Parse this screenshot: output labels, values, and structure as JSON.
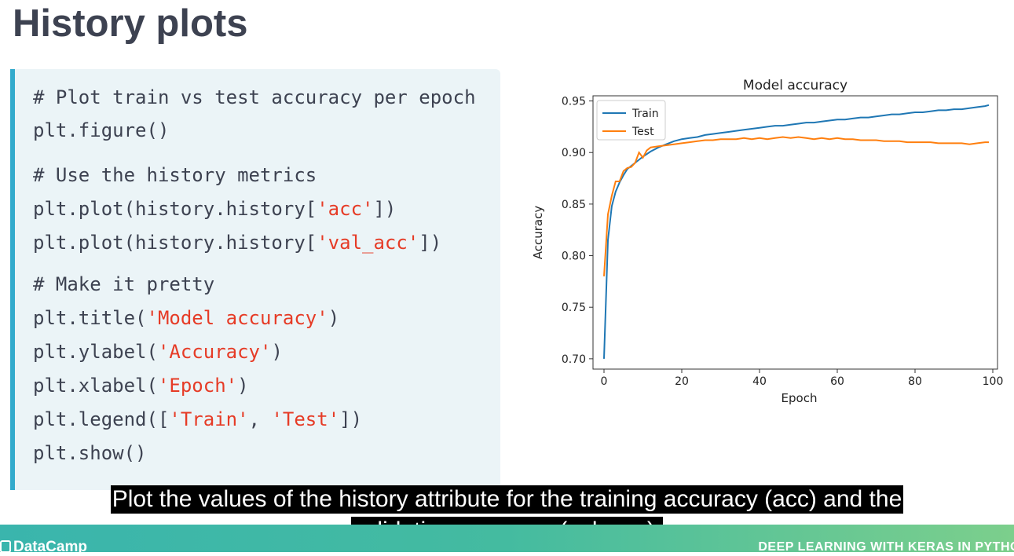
{
  "slide": {
    "title": "History plots"
  },
  "code": {
    "lines": [
      {
        "parts": [
          {
            "text": "# Plot train vs test accuracy per epoch",
            "str": false
          }
        ]
      },
      {
        "parts": [
          {
            "text": "plt.figure()",
            "str": false
          }
        ]
      },
      {
        "parts": [
          {
            "text": "# Use the history metrics",
            "str": false
          }
        ]
      },
      {
        "parts": [
          {
            "text": "plt.plot(history.history[",
            "str": false
          },
          {
            "text": "'acc'",
            "str": true
          },
          {
            "text": "])",
            "str": false
          }
        ]
      },
      {
        "parts": [
          {
            "text": "plt.plot(history.history[",
            "str": false
          },
          {
            "text": "'val_acc'",
            "str": true
          },
          {
            "text": "])",
            "str": false
          }
        ]
      },
      {
        "parts": [
          {
            "text": "# Make it pretty",
            "str": false
          }
        ]
      },
      {
        "parts": [
          {
            "text": "plt.title(",
            "str": false
          },
          {
            "text": "'Model accuracy'",
            "str": true
          },
          {
            "text": ")",
            "str": false
          }
        ]
      },
      {
        "parts": [
          {
            "text": "plt.ylabel(",
            "str": false
          },
          {
            "text": "'Accuracy'",
            "str": true
          },
          {
            "text": ")",
            "str": false
          }
        ]
      },
      {
        "parts": [
          {
            "text": "plt.xlabel(",
            "str": false
          },
          {
            "text": "'Epoch'",
            "str": true
          },
          {
            "text": ")",
            "str": false
          }
        ]
      },
      {
        "parts": [
          {
            "text": "plt.legend([",
            "str": false
          },
          {
            "text": "'Train'",
            "str": true
          },
          {
            "text": ", ",
            "str": false
          },
          {
            "text": "'Test'",
            "str": true
          },
          {
            "text": "])",
            "str": false
          }
        ]
      },
      {
        "parts": [
          {
            "text": "plt.show()",
            "str": false
          }
        ]
      }
    ]
  },
  "chart_data": {
    "type": "line",
    "title": "Model accuracy",
    "xlabel": "Epoch",
    "ylabel": "Accuracy",
    "xlim": [
      0,
      100
    ],
    "ylim": [
      0.69,
      0.955
    ],
    "xticks": [
      0,
      20,
      40,
      60,
      80,
      100
    ],
    "yticks": [
      0.7,
      0.75,
      0.8,
      0.85,
      0.9,
      0.95
    ],
    "ytick_labels": [
      "0.70",
      "0.75",
      "0.80",
      "0.85",
      "0.90",
      "0.95"
    ],
    "legend": "top-left",
    "series": [
      {
        "name": "Train",
        "color": "#1f77b4",
        "x": [
          0,
          1,
          2,
          3,
          4,
          5,
          6,
          8,
          10,
          12,
          14,
          16,
          18,
          20,
          22,
          24,
          26,
          28,
          30,
          32,
          34,
          36,
          38,
          40,
          42,
          44,
          46,
          48,
          50,
          52,
          54,
          56,
          58,
          60,
          62,
          64,
          66,
          68,
          70,
          72,
          74,
          76,
          78,
          80,
          82,
          84,
          86,
          88,
          90,
          92,
          94,
          96,
          98,
          99
        ],
        "values": [
          0.7,
          0.815,
          0.848,
          0.862,
          0.871,
          0.878,
          0.884,
          0.89,
          0.896,
          0.901,
          0.905,
          0.908,
          0.911,
          0.913,
          0.914,
          0.915,
          0.917,
          0.918,
          0.919,
          0.92,
          0.921,
          0.922,
          0.923,
          0.924,
          0.925,
          0.926,
          0.926,
          0.927,
          0.928,
          0.929,
          0.929,
          0.93,
          0.931,
          0.932,
          0.932,
          0.933,
          0.934,
          0.934,
          0.935,
          0.936,
          0.937,
          0.937,
          0.938,
          0.939,
          0.939,
          0.94,
          0.941,
          0.941,
          0.942,
          0.942,
          0.943,
          0.944,
          0.945,
          0.946
        ]
      },
      {
        "name": "Test",
        "color": "#ff7f0e",
        "x": [
          0,
          1,
          2,
          3,
          4,
          5,
          6,
          7,
          8,
          9,
          10,
          11,
          12,
          14,
          16,
          18,
          20,
          22,
          24,
          26,
          28,
          30,
          32,
          34,
          36,
          38,
          40,
          42,
          44,
          46,
          48,
          50,
          52,
          54,
          56,
          58,
          60,
          62,
          64,
          66,
          68,
          70,
          72,
          74,
          76,
          78,
          80,
          82,
          84,
          86,
          88,
          90,
          92,
          94,
          96,
          98,
          99
        ],
        "values": [
          0.78,
          0.84,
          0.858,
          0.872,
          0.872,
          0.882,
          0.885,
          0.886,
          0.89,
          0.9,
          0.895,
          0.902,
          0.905,
          0.906,
          0.907,
          0.908,
          0.909,
          0.91,
          0.911,
          0.912,
          0.912,
          0.913,
          0.913,
          0.913,
          0.914,
          0.913,
          0.914,
          0.913,
          0.914,
          0.915,
          0.914,
          0.915,
          0.914,
          0.913,
          0.914,
          0.913,
          0.914,
          0.913,
          0.913,
          0.912,
          0.912,
          0.912,
          0.911,
          0.911,
          0.911,
          0.91,
          0.91,
          0.91,
          0.91,
          0.909,
          0.909,
          0.909,
          0.909,
          0.908,
          0.909,
          0.91,
          0.91
        ]
      }
    ]
  },
  "caption": {
    "line1": "Plot the values of the history attribute for the training accuracy (acc) and the",
    "line2": "validation accuracy (val_acc)."
  },
  "footer": {
    "brand": "DataCamp",
    "course": "DEEP LEARNING WITH KERAS IN PYTHON",
    "colors": {
      "start": "#3ab5ad",
      "end": "#7ccf8c"
    }
  }
}
